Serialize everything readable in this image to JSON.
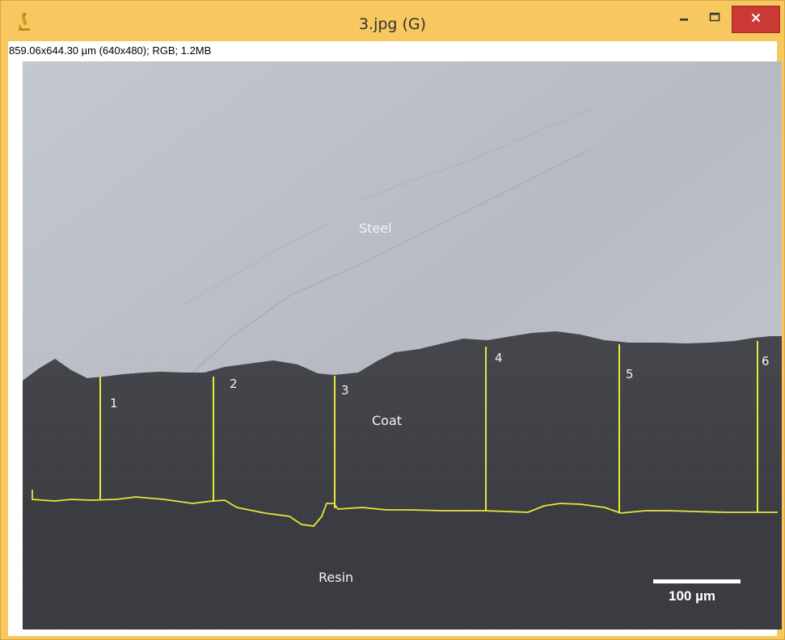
{
  "window": {
    "title": "3.jpg (G)",
    "icon": "microscope-icon",
    "controls": [
      "minimize-icon",
      "maximize-icon",
      "close-icon"
    ]
  },
  "image_info": "859.06x644.30 µm (640x480); RGB; 1.2MB",
  "image": {
    "regions": {
      "steel": "Steel",
      "coat": "Coat",
      "resin": "Resin"
    },
    "measurement_labels": [
      "1",
      "2",
      "3",
      "4",
      "5",
      "6"
    ],
    "scale_bar_label": "100 µm",
    "colors": {
      "steel": "#b9bcc5",
      "coat": "#3f4147",
      "resin": "#3a3c42",
      "overlay": "#e8e63a",
      "label_text": "#f2f2f2"
    }
  }
}
